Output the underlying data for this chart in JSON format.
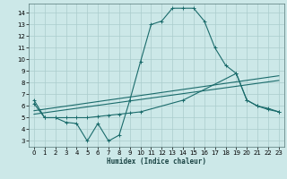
{
  "background_color": "#cce8e8",
  "grid_color": "#aacccc",
  "line_color": "#1a6b6b",
  "xlabel": "Humidex (Indice chaleur)",
  "xlim": [
    -0.5,
    23.5
  ],
  "ylim": [
    2.5,
    14.8
  ],
  "xticks": [
    0,
    1,
    2,
    3,
    4,
    5,
    6,
    7,
    8,
    9,
    10,
    11,
    12,
    13,
    14,
    15,
    16,
    17,
    18,
    19,
    20,
    21,
    22,
    23
  ],
  "yticks": [
    3,
    4,
    5,
    6,
    7,
    8,
    9,
    10,
    11,
    12,
    13,
    14
  ],
  "curve1_x": [
    0,
    1,
    2,
    3,
    4,
    5,
    6,
    7,
    8,
    9,
    10,
    11,
    12,
    13,
    14,
    15,
    16,
    17,
    18,
    19,
    20,
    21,
    22,
    23
  ],
  "curve1_y": [
    6.5,
    5.0,
    5.0,
    4.6,
    4.5,
    3.0,
    4.5,
    3.0,
    3.5,
    6.5,
    9.8,
    13.0,
    13.3,
    14.4,
    14.4,
    14.4,
    13.3,
    11.0,
    9.5,
    8.8,
    6.5,
    6.0,
    5.8,
    5.5
  ],
  "curve2_x": [
    0,
    23
  ],
  "curve2_y": [
    5.3,
    8.2
  ],
  "curve3_x": [
    0,
    23
  ],
  "curve3_y": [
    5.6,
    8.6
  ],
  "curve4_x": [
    0,
    1,
    2,
    3,
    4,
    5,
    6,
    7,
    8,
    9,
    10,
    14,
    19,
    20,
    21,
    22,
    23
  ],
  "curve4_y": [
    6.2,
    5.0,
    5.0,
    5.0,
    5.0,
    5.0,
    5.1,
    5.2,
    5.3,
    5.4,
    5.5,
    6.5,
    8.8,
    6.5,
    6.0,
    5.7,
    5.5
  ]
}
